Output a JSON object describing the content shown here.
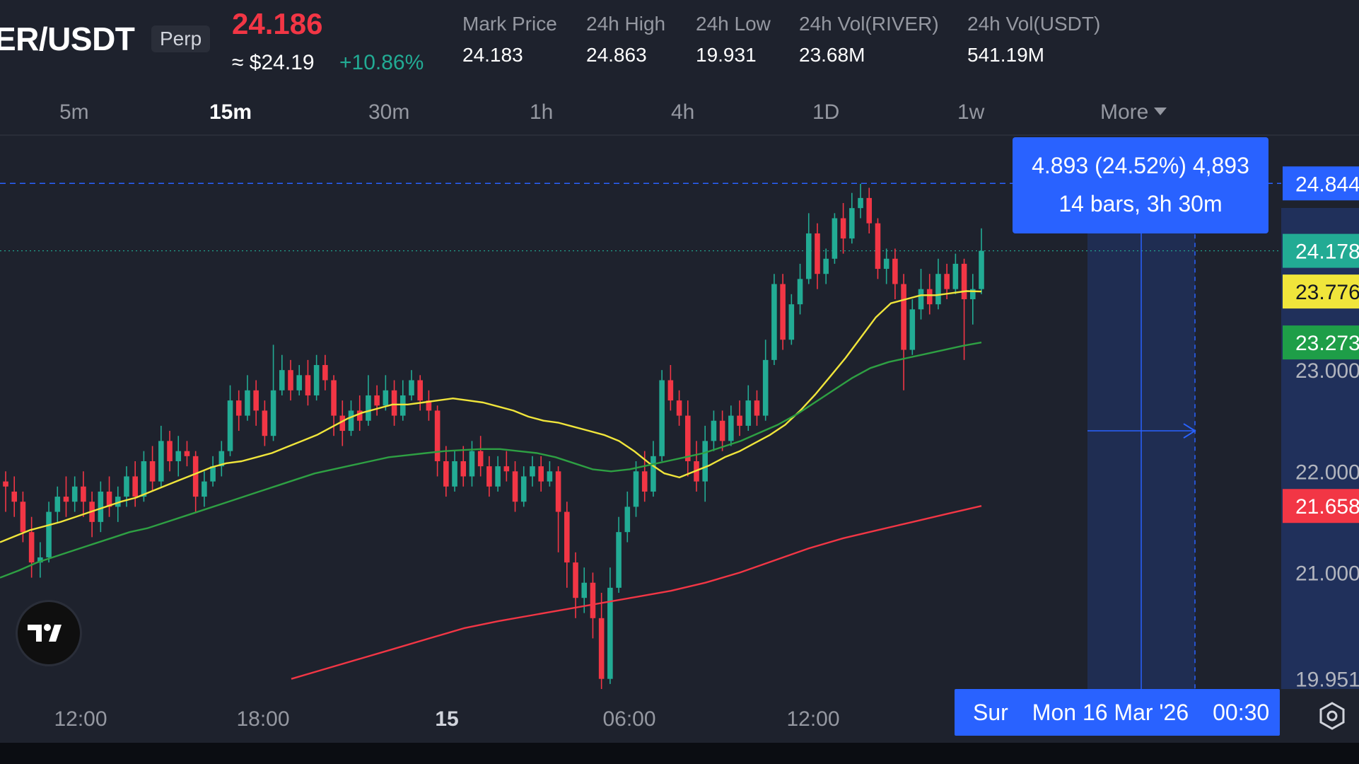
{
  "header": {
    "symbol": "ER/USDT",
    "badge": "Perp",
    "last_price": "24.186",
    "approx_price": "≈ $24.19",
    "change_pct": "+10.86%",
    "stats": [
      {
        "label": "Mark Price",
        "value": "24.183"
      },
      {
        "label": "24h High",
        "value": "24.863"
      },
      {
        "label": "24h Low",
        "value": "19.931"
      },
      {
        "label": "24h Vol(RIVER)",
        "value": "23.68M"
      },
      {
        "label": "24h Vol(USDT)",
        "value": "541.19M"
      }
    ]
  },
  "timeframes": {
    "items": [
      "5m",
      "15m",
      "30m",
      "1h",
      "4h",
      "1D",
      "1w"
    ],
    "active": "15m",
    "more_label": "More"
  },
  "measure": {
    "line1": "4.893 (24.52%) 4,893",
    "line2": "14 bars, 3h 30m"
  },
  "crosshair_date": {
    "day": "Sur",
    "date": "Mon 16 Mar '26",
    "time": "00:30"
  },
  "colors": {
    "up": "#22ab94",
    "down": "#f23645",
    "ma_fast": "#f0e53b",
    "ma_mid": "#2ea043",
    "ma_slow": "#f23645",
    "accent": "#2962ff",
    "background": "#1e222d"
  },
  "icons": {
    "logo": "tradingview-logo-icon",
    "settings": "settings-icon",
    "more_caret": "caret-down-icon"
  },
  "chart_data": {
    "type": "candlestick",
    "y_range": [
      19.85,
      25.3
    ],
    "price_axis_ticks": [
      "23.000",
      "22.000",
      "21.000",
      "19.951"
    ],
    "price_labels": [
      {
        "label": "24.844",
        "value": 24.844,
        "role": "measure-top"
      },
      {
        "label": "24.178",
        "value": 24.178,
        "role": "last-price"
      },
      {
        "label": "23.776",
        "value": 23.776,
        "role": "ma-fast"
      },
      {
        "label": "23.273",
        "value": 23.273,
        "role": "ma-mid"
      },
      {
        "label": "21.658",
        "value": 21.658,
        "role": "ma-slow"
      }
    ],
    "x_ticks": [
      {
        "label": "12:00",
        "bold": false
      },
      {
        "label": "18:00",
        "bold": false
      },
      {
        "label": "15",
        "bold": true
      },
      {
        "label": "06:00",
        "bold": false
      },
      {
        "label": "12:00",
        "bold": false
      }
    ],
    "candles": [
      [
        21.9,
        21.85,
        22.0,
        21.6
      ],
      [
        21.8,
        21.7,
        21.95,
        21.55
      ],
      [
        21.7,
        21.4,
        21.8,
        21.3
      ],
      [
        21.4,
        21.1,
        21.55,
        20.95
      ],
      [
        21.1,
        21.15,
        21.3,
        20.95
      ],
      [
        21.15,
        21.6,
        21.7,
        21.1
      ],
      [
        21.6,
        21.75,
        21.85,
        21.5
      ],
      [
        21.75,
        21.7,
        21.95,
        21.55
      ],
      [
        21.7,
        21.85,
        21.95,
        21.6
      ],
      [
        21.85,
        21.7,
        22.0,
        21.55
      ],
      [
        21.7,
        21.5,
        21.8,
        21.35
      ],
      [
        21.5,
        21.8,
        21.9,
        21.4
      ],
      [
        21.8,
        21.65,
        21.95,
        21.55
      ],
      [
        21.65,
        21.75,
        21.85,
        21.5
      ],
      [
        21.75,
        21.95,
        22.05,
        21.65
      ],
      [
        21.95,
        21.75,
        22.1,
        21.65
      ],
      [
        21.75,
        22.1,
        22.2,
        21.7
      ],
      [
        22.1,
        21.9,
        22.25,
        21.8
      ],
      [
        21.9,
        22.3,
        22.45,
        21.85
      ],
      [
        22.3,
        22.1,
        22.4,
        22.0
      ],
      [
        22.1,
        22.2,
        22.35,
        21.95
      ],
      [
        22.2,
        22.15,
        22.3,
        22.05
      ],
      [
        22.15,
        21.75,
        22.2,
        21.6
      ],
      [
        21.75,
        21.9,
        22.0,
        21.65
      ],
      [
        21.9,
        22.05,
        22.15,
        21.85
      ],
      [
        22.05,
        22.2,
        22.3,
        21.95
      ],
      [
        22.2,
        22.7,
        22.85,
        22.15
      ],
      [
        22.7,
        22.55,
        22.8,
        22.4
      ],
      [
        22.55,
        22.8,
        22.95,
        22.5
      ],
      [
        22.8,
        22.6,
        22.9,
        22.45
      ],
      [
        22.6,
        22.35,
        22.7,
        22.25
      ],
      [
        22.35,
        22.8,
        23.25,
        22.3
      ],
      [
        22.8,
        23.0,
        23.15,
        22.75
      ],
      [
        23.0,
        22.8,
        23.1,
        22.7
      ],
      [
        22.8,
        22.95,
        23.05,
        22.75
      ],
      [
        22.95,
        22.75,
        23.1,
        22.65
      ],
      [
        22.75,
        23.05,
        23.15,
        22.7
      ],
      [
        23.05,
        22.9,
        23.15,
        22.8
      ],
      [
        22.9,
        22.55,
        22.95,
        22.35
      ],
      [
        22.55,
        22.4,
        22.7,
        22.25
      ],
      [
        22.4,
        22.6,
        22.7,
        22.35
      ],
      [
        22.6,
        22.5,
        22.75,
        22.4
      ],
      [
        22.5,
        22.75,
        22.95,
        22.45
      ],
      [
        22.75,
        22.65,
        22.85,
        22.55
      ],
      [
        22.65,
        22.8,
        22.95,
        22.6
      ],
      [
        22.8,
        22.55,
        22.9,
        22.45
      ],
      [
        22.55,
        22.75,
        22.9,
        22.5
      ],
      [
        22.75,
        22.9,
        23.0,
        22.7
      ],
      [
        22.9,
        22.7,
        22.95,
        22.6
      ],
      [
        22.7,
        22.6,
        22.8,
        22.5
      ],
      [
        22.6,
        22.1,
        22.65,
        21.95
      ],
      [
        22.1,
        21.85,
        22.25,
        21.75
      ],
      [
        21.85,
        22.1,
        22.2,
        21.8
      ],
      [
        22.1,
        21.95,
        22.25,
        21.85
      ],
      [
        21.95,
        22.2,
        22.3,
        21.85
      ],
      [
        22.2,
        22.05,
        22.35,
        21.95
      ],
      [
        22.05,
        21.85,
        22.15,
        21.75
      ],
      [
        21.85,
        22.05,
        22.15,
        21.8
      ],
      [
        22.05,
        22.0,
        22.2,
        21.9
      ],
      [
        22.0,
        21.7,
        22.1,
        21.6
      ],
      [
        21.7,
        21.95,
        22.05,
        21.65
      ],
      [
        21.95,
        22.05,
        22.15,
        21.85
      ],
      [
        22.05,
        21.9,
        22.15,
        21.8
      ],
      [
        21.9,
        22.0,
        22.1,
        21.85
      ],
      [
        22.0,
        21.6,
        22.05,
        21.2
      ],
      [
        21.6,
        21.1,
        21.7,
        20.85
      ],
      [
        21.1,
        20.75,
        21.2,
        20.55
      ],
      [
        20.75,
        20.9,
        21.05,
        20.6
      ],
      [
        20.9,
        20.55,
        21.0,
        20.35
      ],
      [
        20.55,
        19.95,
        20.8,
        19.85
      ],
      [
        19.95,
        20.85,
        21.05,
        19.9
      ],
      [
        20.85,
        21.4,
        21.55,
        20.8
      ],
      [
        21.4,
        21.65,
        21.8,
        21.3
      ],
      [
        21.65,
        22.0,
        22.1,
        21.55
      ],
      [
        22.0,
        21.8,
        22.2,
        21.7
      ],
      [
        21.8,
        22.15,
        22.3,
        21.75
      ],
      [
        22.15,
        22.9,
        23.0,
        22.1
      ],
      [
        22.9,
        22.7,
        23.05,
        22.6
      ],
      [
        22.7,
        22.55,
        22.8,
        22.45
      ],
      [
        22.55,
        22.1,
        22.7,
        21.95
      ],
      [
        22.1,
        21.9,
        22.3,
        21.8
      ],
      [
        21.9,
        22.3,
        22.45,
        21.7
      ],
      [
        22.3,
        22.5,
        22.6,
        22.2
      ],
      [
        22.5,
        22.3,
        22.6,
        22.2
      ],
      [
        22.3,
        22.55,
        22.65,
        22.25
      ],
      [
        22.55,
        22.45,
        22.7,
        22.35
      ],
      [
        22.45,
        22.7,
        22.85,
        22.4
      ],
      [
        22.7,
        22.55,
        22.8,
        22.45
      ],
      [
        22.55,
        23.1,
        23.3,
        22.5
      ],
      [
        23.1,
        23.85,
        23.95,
        23.05
      ],
      [
        23.85,
        23.3,
        23.95,
        23.2
      ],
      [
        23.3,
        23.65,
        23.75,
        23.25
      ],
      [
        23.65,
        23.9,
        24.05,
        23.55
      ],
      [
        23.9,
        24.35,
        24.55,
        23.85
      ],
      [
        24.35,
        23.95,
        24.45,
        23.8
      ],
      [
        23.95,
        24.1,
        24.2,
        23.85
      ],
      [
        24.1,
        24.5,
        24.55,
        24.05
      ],
      [
        24.5,
        24.3,
        24.65,
        24.15
      ],
      [
        24.3,
        24.6,
        24.75,
        24.25
      ],
      [
        24.6,
        24.7,
        24.84,
        24.5
      ],
      [
        24.7,
        24.45,
        24.8,
        24.35
      ],
      [
        24.45,
        24.0,
        24.5,
        23.9
      ],
      [
        24.0,
        24.1,
        24.2,
        23.85
      ],
      [
        24.1,
        23.85,
        24.2,
        23.7
      ],
      [
        23.85,
        23.2,
        23.95,
        22.8
      ],
      [
        23.2,
        23.6,
        23.7,
        23.15
      ],
      [
        23.6,
        23.8,
        24.0,
        23.5
      ],
      [
        23.8,
        23.65,
        23.95,
        23.55
      ],
      [
        23.65,
        23.95,
        24.1,
        23.6
      ],
      [
        23.95,
        23.8,
        24.05,
        23.7
      ],
      [
        23.8,
        24.05,
        24.15,
        23.75
      ],
      [
        24.05,
        23.7,
        24.1,
        23.1
      ],
      [
        23.7,
        23.8,
        23.95,
        23.45
      ],
      [
        23.8,
        24.178,
        24.4,
        23.75
      ]
    ],
    "ma_fast": [
      21.3,
      21.36,
      21.42,
      21.46,
      21.5,
      21.55,
      21.6,
      21.65,
      21.7,
      21.74,
      21.8,
      21.86,
      21.92,
      21.98,
      22.04,
      22.08,
      22.1,
      22.14,
      22.18,
      22.24,
      22.3,
      22.36,
      22.44,
      22.52,
      22.58,
      22.62,
      22.66,
      22.66,
      22.68,
      22.7,
      22.72,
      22.7,
      22.68,
      22.64,
      22.6,
      22.54,
      22.5,
      22.48,
      22.44,
      22.4,
      22.36,
      22.3,
      22.2,
      22.08,
      21.98,
      21.94,
      22.0,
      22.06,
      22.14,
      22.2,
      22.28,
      22.36,
      22.46,
      22.6,
      22.76,
      22.94,
      23.12,
      23.32,
      23.52,
      23.66,
      23.7,
      23.74,
      23.74,
      23.76,
      23.78,
      23.776
    ],
    "ma_mid": [
      20.95,
      21.02,
      21.1,
      21.16,
      21.22,
      21.28,
      21.34,
      21.4,
      21.44,
      21.5,
      21.56,
      21.62,
      21.68,
      21.74,
      21.8,
      21.86,
      21.92,
      21.98,
      22.02,
      22.06,
      22.1,
      22.14,
      22.16,
      22.18,
      22.2,
      22.21,
      22.22,
      22.22,
      22.2,
      22.18,
      22.14,
      22.08,
      22.02,
      22.0,
      22.02,
      22.06,
      22.1,
      22.14,
      22.18,
      22.24,
      22.3,
      22.38,
      22.46,
      22.56,
      22.68,
      22.8,
      22.92,
      23.02,
      23.08,
      23.12,
      23.16,
      23.2,
      23.24,
      23.273
    ],
    "ma_slow": [
      19.95,
      20.05,
      20.15,
      20.25,
      20.35,
      20.45,
      20.52,
      20.58,
      20.64,
      20.7,
      20.76,
      20.82,
      20.9,
      21.0,
      21.12,
      21.24,
      21.34,
      21.42,
      21.5,
      21.58,
      21.658
    ]
  }
}
